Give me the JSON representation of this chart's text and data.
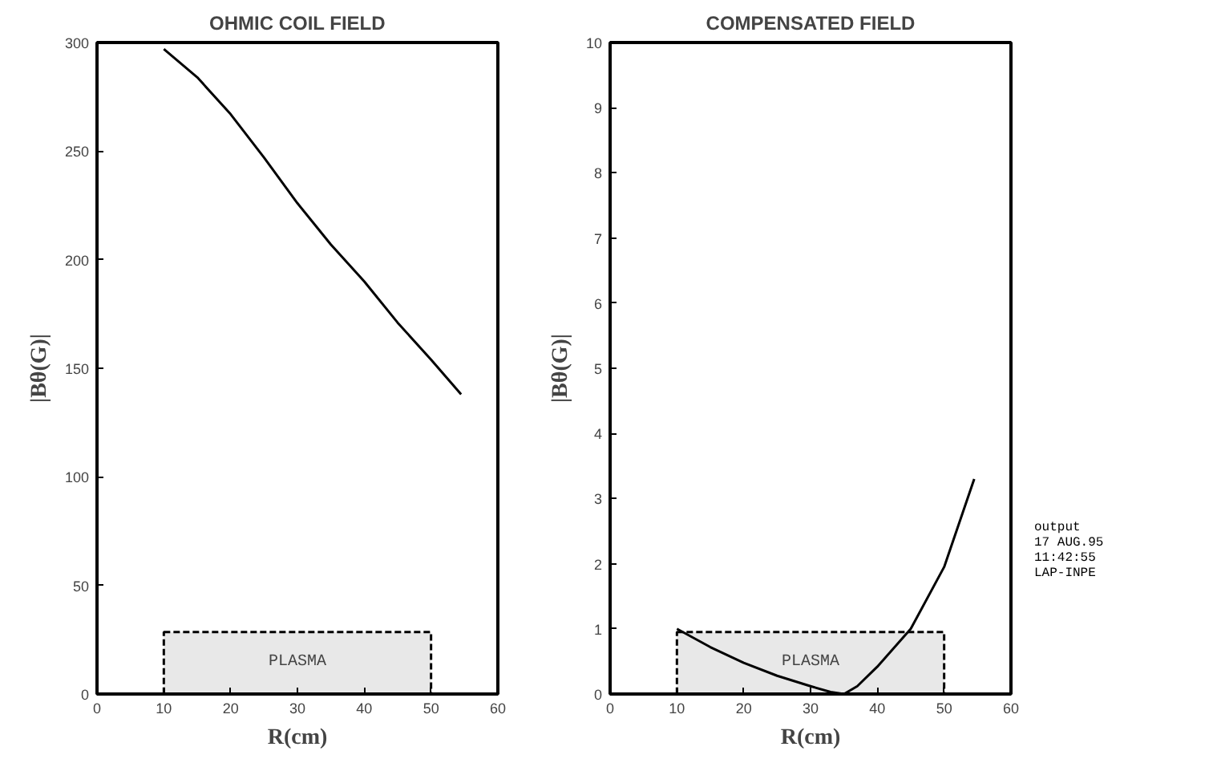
{
  "chart_data": [
    {
      "type": "line",
      "title": "OHMIC COIL FIELD",
      "xlabel": "R(cm)",
      "ylabel": "|Bθ(G)|",
      "x": [
        10,
        15,
        20,
        25,
        30,
        35,
        40,
        45,
        50,
        54.5
      ],
      "series": [
        {
          "color": "#000000",
          "values": [
            297,
            284,
            267,
            247,
            226,
            207,
            190,
            171,
            154,
            138
          ]
        }
      ],
      "xlim": [
        0,
        60
      ],
      "xticks": [
        0,
        10,
        20,
        30,
        40,
        50,
        60
      ],
      "ylim": [
        0,
        300
      ],
      "yticks": [
        0,
        50,
        100,
        150,
        200,
        250,
        300
      ],
      "bands": [
        {
          "axis": "x",
          "from": 10,
          "to": 50,
          "label": "PLASMA",
          "color": "#d9d9d9"
        }
      ],
      "grid": false,
      "line_style": "solid"
    },
    {
      "type": "line",
      "title": "COMPENSATED FIELD",
      "xlabel": "R(cm)",
      "ylabel": "|Bθ(G)|",
      "x": [
        10,
        15,
        20,
        25,
        30,
        33,
        35,
        37,
        40,
        45,
        50,
        54.5
      ],
      "series": [
        {
          "color": "#000000",
          "values": [
            1.0,
            0.72,
            0.48,
            0.28,
            0.12,
            0.03,
            0.0,
            0.12,
            0.42,
            1.0,
            1.95,
            3.3
          ]
        }
      ],
      "xlim": [
        0,
        60
      ],
      "xticks": [
        0,
        10,
        20,
        30,
        40,
        50,
        60
      ],
      "ylim": [
        0,
        10
      ],
      "yticks": [
        0,
        1,
        2,
        3,
        4,
        5,
        6,
        7,
        8,
        9,
        10
      ],
      "bands": [
        {
          "axis": "x",
          "from": 10,
          "to": 50,
          "label": "PLASMA",
          "color": "#d9d9d9"
        }
      ],
      "grid": false,
      "line_style": "solid",
      "annotations": [
        "output",
        "17 AUG.95",
        "11:42:55",
        "LAP-INPE"
      ]
    }
  ]
}
